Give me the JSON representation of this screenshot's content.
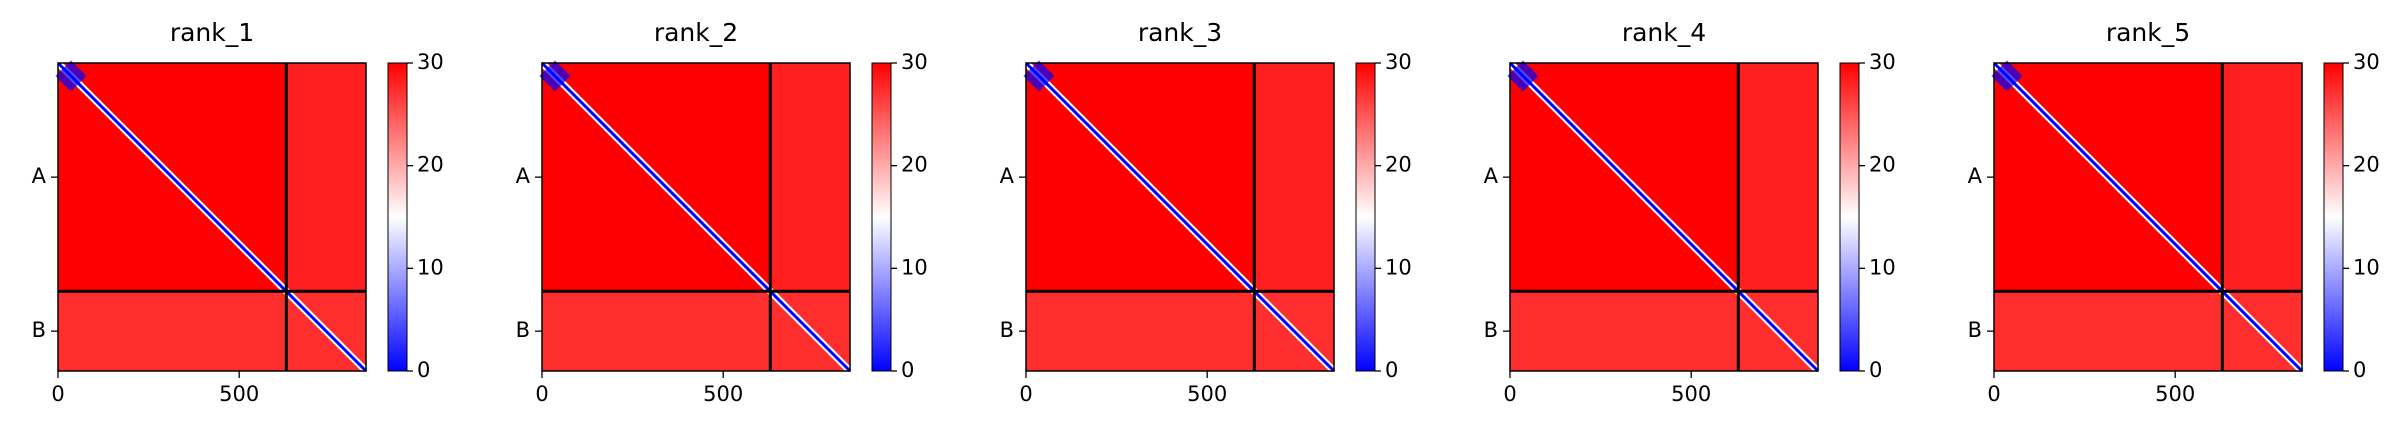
{
  "chart_data": [
    {
      "type": "heatmap",
      "title": "rank_1",
      "xlim": [
        0,
        850
      ],
      "xticks": [
        0,
        500
      ],
      "ylim": [
        850,
        0
      ],
      "yticks": [
        {
          "value": 315,
          "label": "A"
        },
        {
          "value": 740,
          "label": "B"
        }
      ],
      "chain_breaks": [
        630
      ],
      "clim": [
        0,
        30
      ],
      "cticks": [
        0,
        10,
        20,
        30
      ],
      "colormap": [
        "#0000ff",
        "#ffffff",
        "#ff0000"
      ]
    },
    {
      "type": "heatmap",
      "title": "rank_2",
      "xlim": [
        0,
        850
      ],
      "xticks": [
        0,
        500
      ],
      "ylim": [
        850,
        0
      ],
      "yticks": [
        {
          "value": 315,
          "label": "A"
        },
        {
          "value": 740,
          "label": "B"
        }
      ],
      "chain_breaks": [
        630
      ],
      "clim": [
        0,
        30
      ],
      "cticks": [
        0,
        10,
        20,
        30
      ],
      "colormap": [
        "#0000ff",
        "#ffffff",
        "#ff0000"
      ]
    },
    {
      "type": "heatmap",
      "title": "rank_3",
      "xlim": [
        0,
        850
      ],
      "xticks": [
        0,
        500
      ],
      "ylim": [
        850,
        0
      ],
      "yticks": [
        {
          "value": 315,
          "label": "A"
        },
        {
          "value": 740,
          "label": "B"
        }
      ],
      "chain_breaks": [
        630
      ],
      "clim": [
        0,
        30
      ],
      "cticks": [
        0,
        10,
        20,
        30
      ],
      "colormap": [
        "#0000ff",
        "#ffffff",
        "#ff0000"
      ]
    },
    {
      "type": "heatmap",
      "title": "rank_4",
      "xlim": [
        0,
        850
      ],
      "xticks": [
        0,
        500
      ],
      "ylim": [
        850,
        0
      ],
      "yticks": [
        {
          "value": 315,
          "label": "A"
        },
        {
          "value": 740,
          "label": "B"
        }
      ],
      "chain_breaks": [
        630
      ],
      "clim": [
        0,
        30
      ],
      "cticks": [
        0,
        10,
        20,
        30
      ],
      "colormap": [
        "#0000ff",
        "#ffffff",
        "#ff0000"
      ]
    },
    {
      "type": "heatmap",
      "title": "rank_5",
      "xlim": [
        0,
        850
      ],
      "xticks": [
        0,
        500
      ],
      "ylim": [
        850,
        0
      ],
      "yticks": [
        {
          "value": 315,
          "label": "A"
        },
        {
          "value": 740,
          "label": "B"
        }
      ],
      "chain_breaks": [
        630
      ],
      "clim": [
        0,
        30
      ],
      "cticks": [
        0,
        10,
        20,
        30
      ],
      "colormap": [
        "#0000ff",
        "#ffffff",
        "#ff0000"
      ]
    }
  ]
}
